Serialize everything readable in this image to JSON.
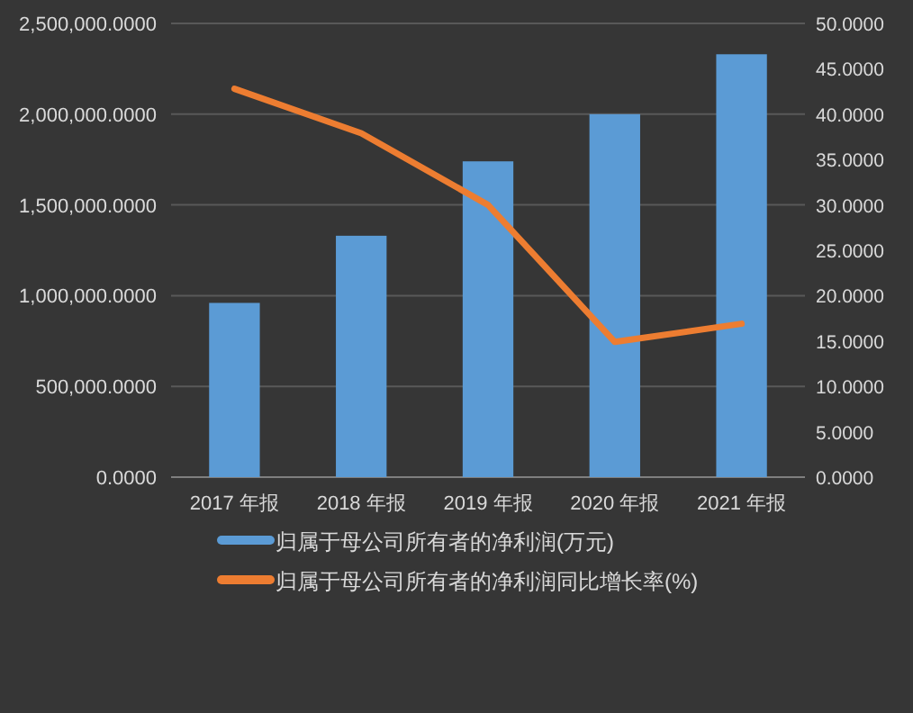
{
  "chart_data": {
    "type": "bar",
    "categories": [
      "2017 年报",
      "2018 年报",
      "2019 年报",
      "2020 年报",
      "2021 年报"
    ],
    "series": [
      {
        "name": "归属于母公司所有者的净利润(万元)",
        "color": "#5b9bd5",
        "values": [
          960000,
          1330000,
          1740000,
          2000000,
          2330000
        ]
      },
      {
        "name": "归属于母公司所有者的净利润同比增长率(%)",
        "type": "line",
        "axis": "y2",
        "color": "#ed7d31",
        "values": [
          42.8,
          37.9,
          30.0,
          14.9,
          16.9
        ]
      }
    ],
    "ylim": [
      0,
      2500000
    ],
    "yticks": [
      {
        "value": 0,
        "label": "0.0000"
      },
      {
        "value": 500000,
        "label": "500,000.0000"
      },
      {
        "value": 1000000,
        "label": "1,000,000.0000"
      },
      {
        "value": 1500000,
        "label": "1,500,000.0000"
      },
      {
        "value": 2000000,
        "label": "2,000,000.0000"
      },
      {
        "value": 2500000,
        "label": "2,500,000.0000"
      }
    ],
    "y2lim": [
      0,
      50
    ],
    "y2ticks": [
      {
        "value": 0,
        "label": "0.0000"
      },
      {
        "value": 5,
        "label": "5.0000"
      },
      {
        "value": 10,
        "label": "10.0000"
      },
      {
        "value": 15,
        "label": "15.0000"
      },
      {
        "value": 20,
        "label": "20.0000"
      },
      {
        "value": 25,
        "label": "25.0000"
      },
      {
        "value": 30,
        "label": "30.0000"
      },
      {
        "value": 35,
        "label": "35.0000"
      },
      {
        "value": 40,
        "label": "40.0000"
      },
      {
        "value": 45,
        "label": "45.0000"
      },
      {
        "value": 50,
        "label": "50.0000"
      }
    ],
    "grid": "y",
    "legend": "bottom"
  }
}
